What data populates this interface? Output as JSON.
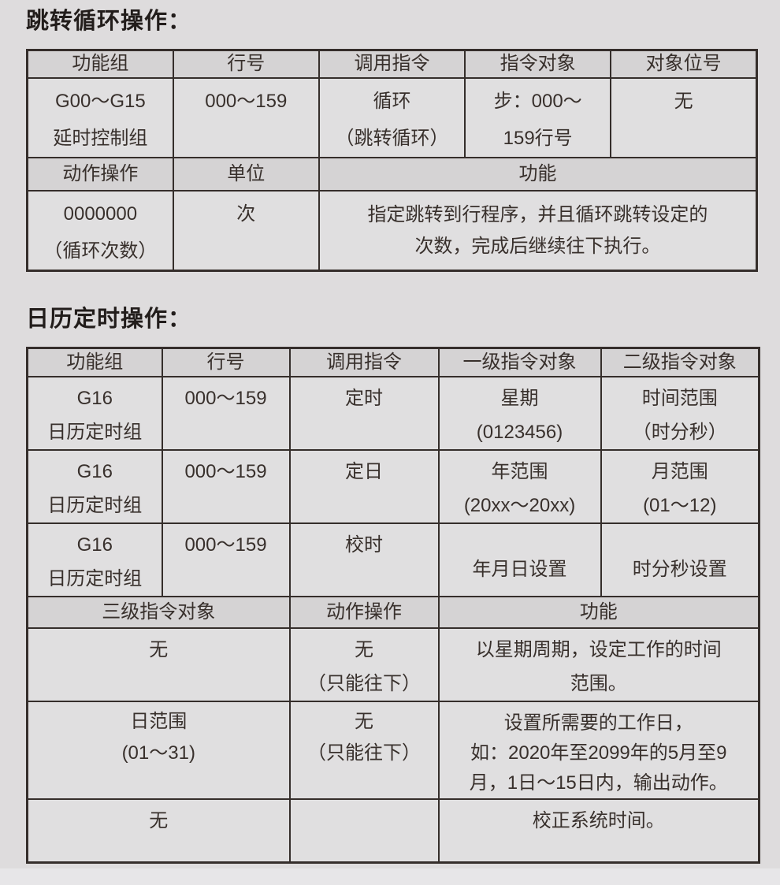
{
  "section1": {
    "title": "跳转循环操作：",
    "table": {
      "headers": [
        "功能组",
        "行号",
        "调用指令",
        "指令对象",
        "对象位号"
      ],
      "row1": [
        "G00～G15\n延时控制组",
        "000～159",
        "循环\n（跳转循环）",
        "步：000～\n159行号",
        "无"
      ],
      "headers2": [
        "动作操作",
        "单位",
        "功能"
      ],
      "row2": [
        "0000000\n（循环次数）",
        "次",
        "指定跳转到行程序，并且循环跳转设定的\n次数，完成后继续往下执行。"
      ]
    }
  },
  "section2": {
    "title": "日历定时操作：",
    "table": {
      "headers": [
        "功能组",
        "行号",
        "调用指令",
        "一级指令对象",
        "二级指令对象"
      ],
      "rows": [
        [
          "G16\n日历定时组",
          "000～159",
          "定时",
          "星期\n(0123456)",
          "时间范围\n（时分秒）"
        ],
        [
          "G16\n日历定时组",
          "000～159",
          "定日",
          "年范围\n(20xx～20xx)",
          "月范围\n(01～12)"
        ],
        [
          "G16\n日历定时组",
          "000～159",
          "校时",
          "年月日设置",
          "时分秒设置"
        ]
      ],
      "headers2": [
        "三级指令对象",
        "动作操作",
        "功能"
      ],
      "rows2": [
        [
          "无",
          "无\n（只能往下）",
          "以星期周期，设定工作的时间\n范围。"
        ],
        [
          "日范围\n(01～31)",
          "无\n（只能往下）",
          "设置所需要的工作日，\n如：2020年至2099年的5月至9\n月，1日～15日内，输出动作。"
        ],
        [
          "无",
          "",
          "校正系统时间。"
        ]
      ]
    }
  }
}
